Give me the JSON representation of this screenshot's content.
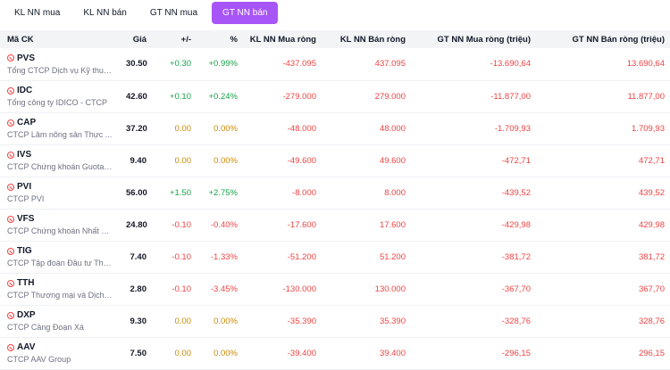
{
  "tabs": [
    {
      "label": "KL NN mua",
      "active": false
    },
    {
      "label": "KL NN bán",
      "active": false
    },
    {
      "label": "GT NN mua",
      "active": false
    },
    {
      "label": "GT NN bán",
      "active": true
    }
  ],
  "columns": [
    "Mã CK",
    "Giá",
    "+/-",
    "%",
    "KL NN Mua ròng",
    "KL NN Bán ròng",
    "GT NN Mua ròng (triệu)",
    "GT NN Bán ròng (triệu)"
  ],
  "colors": {
    "up": "#16a34a",
    "ref": "#ca8a04",
    "down": "#ef4444",
    "accent": "#a855f7"
  },
  "rows": [
    {
      "symbol": "PVS",
      "company": "Tổng CTCP Dịch vụ Kỹ thuậ...",
      "price": "30.50",
      "change": "+0.30",
      "pct": "+0.99%",
      "trend": "up",
      "kl_mua": "-437.095",
      "kl_ban": "437.095",
      "gt_mua": "-13.690,64",
      "gt_ban": "13.690,64"
    },
    {
      "symbol": "IDC",
      "company": "Tổng công ty IDICO - CTCP",
      "price": "42.60",
      "change": "+0.10",
      "pct": "+0.24%",
      "trend": "up",
      "kl_mua": "-279.000",
      "kl_ban": "279.000",
      "gt_mua": "-11.877,00",
      "gt_ban": "11.877,00"
    },
    {
      "symbol": "CAP",
      "company": "CTCP Lâm nông sản Thực ...",
      "price": "37.20",
      "change": "0.00",
      "pct": "0.00%",
      "trend": "ref",
      "kl_mua": "-48.000",
      "kl_ban": "48.000",
      "gt_mua": "-1.709,93",
      "gt_ban": "1.709,93"
    },
    {
      "symbol": "IVS",
      "company": "CTCP Chứng khoán Guotai ...",
      "price": "9.40",
      "change": "0.00",
      "pct": "0.00%",
      "trend": "ref",
      "kl_mua": "-49.600",
      "kl_ban": "49.600",
      "gt_mua": "-472,71",
      "gt_ban": "472,71"
    },
    {
      "symbol": "PVI",
      "company": "CTCP PVI",
      "price": "56.00",
      "change": "+1.50",
      "pct": "+2.75%",
      "trend": "up",
      "kl_mua": "-8.000",
      "kl_ban": "8.000",
      "gt_mua": "-439,52",
      "gt_ban": "439,52"
    },
    {
      "symbol": "VFS",
      "company": "CTCP Chứng khoán Nhất Việt",
      "price": "24.80",
      "change": "-0.10",
      "pct": "-0.40%",
      "trend": "down",
      "kl_mua": "-17.600",
      "kl_ban": "17.600",
      "gt_mua": "-429,98",
      "gt_ban": "429,98"
    },
    {
      "symbol": "TIG",
      "company": "CTCP Tập đoàn Đầu tư Thă...",
      "price": "7.40",
      "change": "-0.10",
      "pct": "-1.33%",
      "trend": "down",
      "kl_mua": "-51.200",
      "kl_ban": "51.200",
      "gt_mua": "-381,72",
      "gt_ban": "381,72"
    },
    {
      "symbol": "TTH",
      "company": "CTCP Thương mại và Dịch ...",
      "price": "2.80",
      "change": "-0.10",
      "pct": "-3.45%",
      "trend": "down",
      "kl_mua": "-130.000",
      "kl_ban": "130.000",
      "gt_mua": "-367,70",
      "gt_ban": "367,70"
    },
    {
      "symbol": "DXP",
      "company": "CTCP Cảng Đoạn Xá",
      "price": "9.30",
      "change": "0.00",
      "pct": "0.00%",
      "trend": "ref",
      "kl_mua": "-35.390",
      "kl_ban": "35.390",
      "gt_mua": "-328,76",
      "gt_ban": "328,76"
    },
    {
      "symbol": "AAV",
      "company": "CTCP AAV Group",
      "price": "7.50",
      "change": "0.00",
      "pct": "0.00%",
      "trend": "ref",
      "kl_mua": "-39.400",
      "kl_ban": "39.400",
      "gt_mua": "-296,15",
      "gt_ban": "296,15"
    }
  ]
}
